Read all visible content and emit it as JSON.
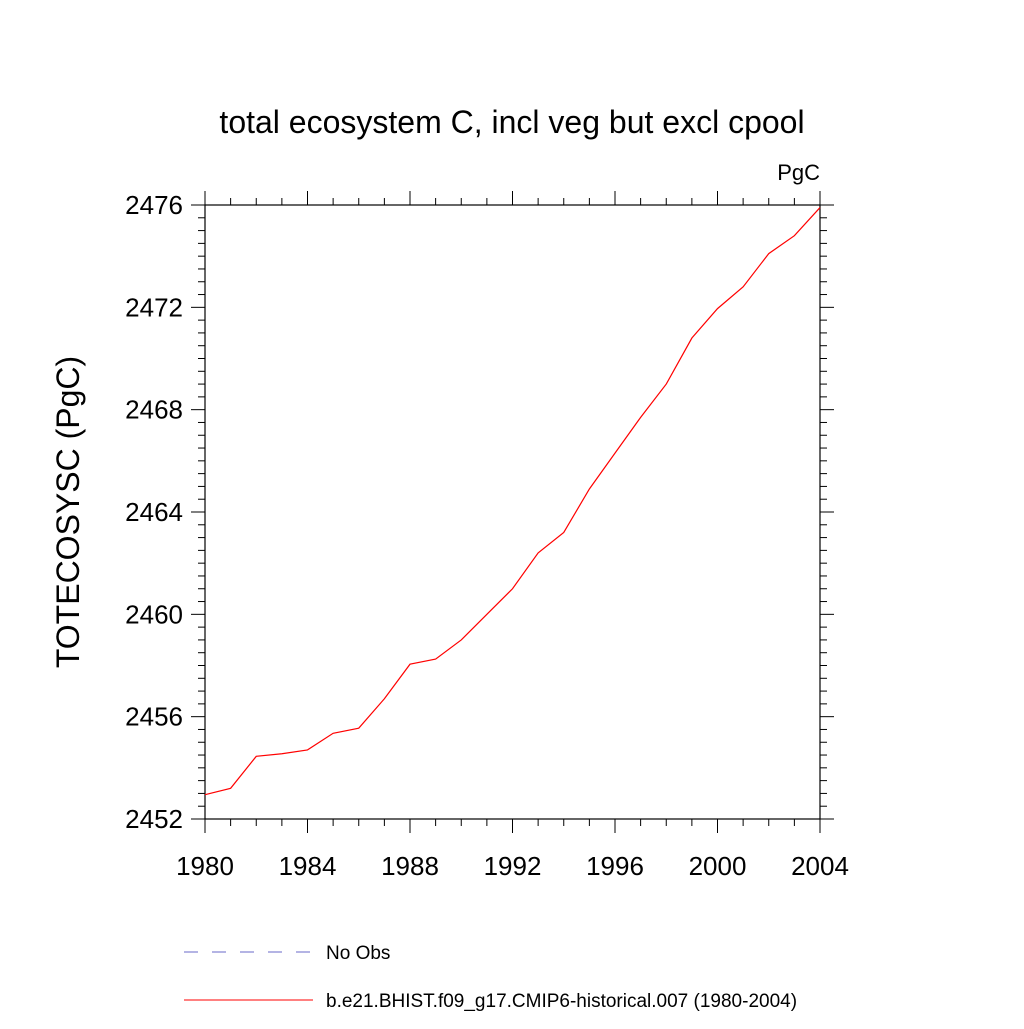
{
  "chart_data": {
    "type": "line",
    "title": "total ecosystem C, incl veg but excl cpool",
    "units_label": "PgC",
    "xlabel": "",
    "ylabel": "TOTECOSYSC  (PgC)",
    "xlim": [
      1980,
      2004
    ],
    "ylim": [
      2452,
      2476
    ],
    "xticks": [
      1980,
      1984,
      1988,
      1992,
      1996,
      2000,
      2004
    ],
    "yticks": [
      2452,
      2456,
      2460,
      2464,
      2468,
      2472,
      2476
    ],
    "grid": false,
    "legend_position": "bottom",
    "series": [
      {
        "name": "b.e21.BHIST.f09_g17.CMIP6-historical.007 (1980-2004)",
        "color": "#ff0000",
        "style": "solid",
        "x": [
          1980,
          1981,
          1982,
          1983,
          1984,
          1985,
          1986,
          1987,
          1988,
          1989,
          1990,
          1991,
          1992,
          1993,
          1994,
          1995,
          1996,
          1997,
          1998,
          1999,
          2000,
          2001,
          2002,
          2003,
          2004
        ],
        "y": [
          2452.95,
          2453.2,
          2454.45,
          2454.55,
          2454.7,
          2455.35,
          2455.55,
          2456.7,
          2458.05,
          2458.25,
          2459.0,
          2460.0,
          2461.0,
          2462.4,
          2463.2,
          2464.9,
          2466.3,
          2467.7,
          2469.0,
          2470.8,
          2471.95,
          2472.8,
          2474.1,
          2474.8,
          2475.9
        ]
      },
      {
        "name": "No Obs",
        "color": "#6a6ac8",
        "style": "dashed",
        "x": [],
        "y": []
      }
    ]
  }
}
